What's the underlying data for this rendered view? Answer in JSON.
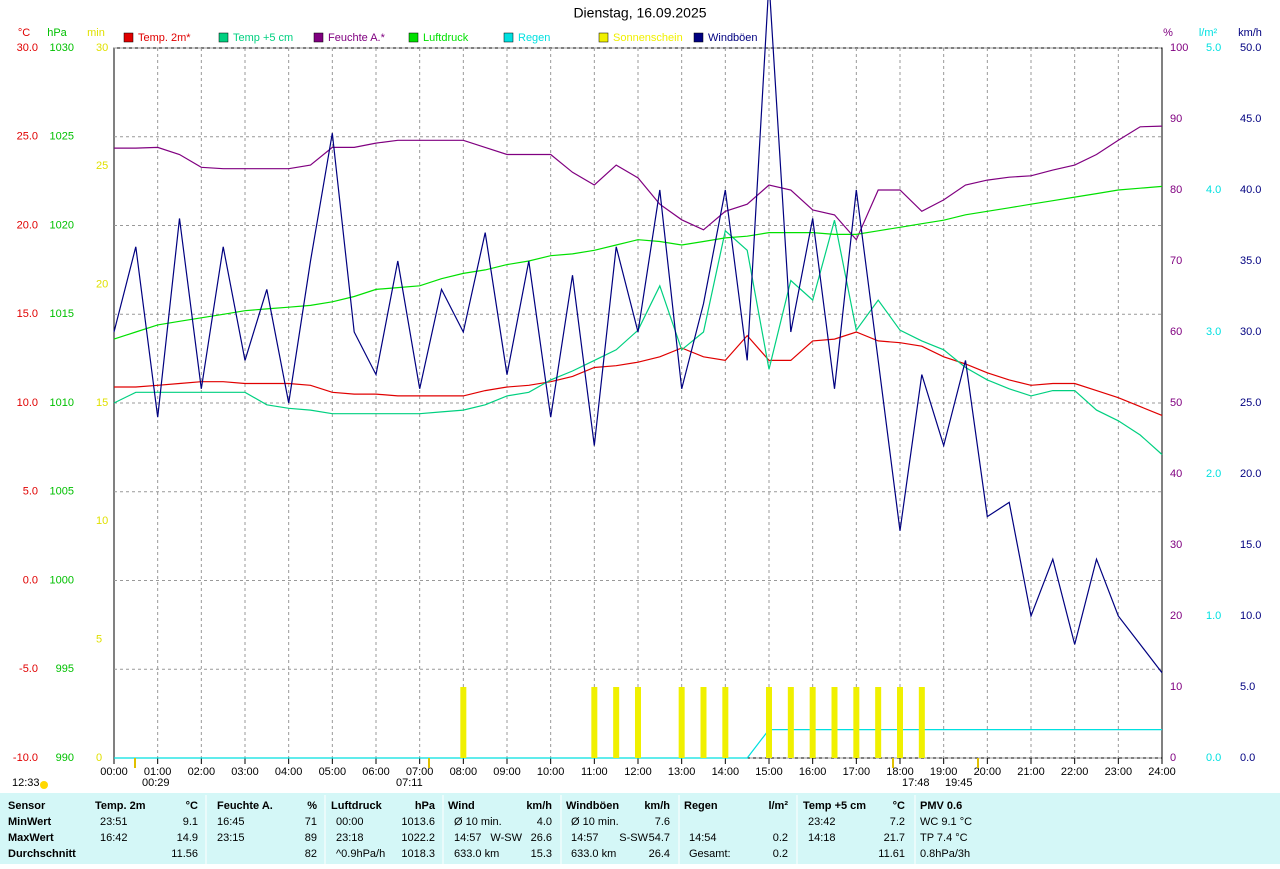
{
  "chart_data": {
    "type": "line",
    "title": "Dienstag, 16.09.2025",
    "grid": true,
    "x": [
      "00:00",
      null,
      "01:00",
      null,
      "02:00",
      null,
      "03:00",
      null,
      "04:00",
      null,
      "05:00",
      null,
      "06:00",
      null,
      "07:00",
      null,
      "08:00",
      null,
      "09:00",
      null,
      "10:00",
      null,
      "11:00",
      null,
      "12:00",
      null,
      "13:00",
      null,
      "14:00",
      null,
      "15:00",
      null,
      "16:00",
      null,
      "17:00",
      null,
      "18:00",
      null,
      "19:00",
      null,
      "20:00",
      null,
      "21:00",
      null,
      "22:00",
      null,
      "23:00",
      null,
      "24:00"
    ],
    "axes": [
      {
        "unit": "°C",
        "color": "#e00000",
        "lim": [
          -10,
          30
        ],
        "ticks": [
          {
            "value": 30,
            "label": "30.0"
          },
          {
            "value": 25,
            "label": "25.0"
          },
          {
            "value": 20,
            "label": "20.0"
          },
          {
            "value": 15,
            "label": "15.0"
          },
          {
            "value": 10,
            "label": "10.0"
          },
          {
            "value": 5,
            "label": "5.0"
          },
          {
            "value": 0,
            "label": "0.0"
          },
          {
            "value": -5,
            "label": "-5.0"
          },
          {
            "value": -10,
            "label": "-10.0"
          }
        ]
      },
      {
        "unit": "hPa",
        "color": "#00c000",
        "lim": [
          990,
          1030
        ],
        "ticks": [
          1030,
          1025,
          1020,
          1015,
          1010,
          1005,
          1000,
          995,
          990
        ]
      },
      {
        "unit": "min",
        "color": "#e0e000",
        "lim": [
          0,
          30
        ],
        "ticks": [
          30,
          25,
          20,
          15,
          10,
          5,
          0
        ]
      },
      {
        "unit": "%",
        "color": "#800080",
        "lim": [
          0,
          100
        ],
        "ticks": [
          100,
          90,
          80,
          70,
          60,
          50,
          40,
          30,
          20,
          10,
          0
        ]
      },
      {
        "unit": "l/m²",
        "color": "#00e0e0",
        "lim": [
          0,
          5
        ],
        "ticks": [
          {
            "value": 5,
            "label": "5.0"
          },
          {
            "value": 4,
            "label": "4.0"
          },
          {
            "value": 3,
            "label": "3.0"
          },
          {
            "value": 2,
            "label": "2.0"
          },
          {
            "value": 1,
            "label": "1.0"
          },
          {
            "value": 0,
            "label": "0.0"
          }
        ]
      },
      {
        "unit": "km/h",
        "color": "#000080",
        "lim": [
          0,
          50
        ],
        "ticks": [
          {
            "value": 50,
            "label": "50.0"
          },
          {
            "value": 45,
            "label": "45.0"
          },
          {
            "value": 40,
            "label": "40.0"
          },
          {
            "value": 35,
            "label": "35.0"
          },
          {
            "value": 30,
            "label": "30.0"
          },
          {
            "value": 25,
            "label": "25.0"
          },
          {
            "value": 20,
            "label": "20.0"
          },
          {
            "value": 15,
            "label": "15.0"
          },
          {
            "value": 10,
            "label": "10.0"
          },
          {
            "value": 5,
            "label": "5.0"
          },
          {
            "value": 0,
            "label": "0.0"
          }
        ]
      }
    ],
    "series": [
      {
        "name": "Temp. 2m*",
        "color": "#e00000",
        "axis": 0,
        "type": "line",
        "values": [
          10.9,
          10.9,
          11.0,
          11.1,
          11.2,
          11.2,
          11.1,
          11.1,
          11.1,
          11.0,
          10.6,
          10.5,
          10.5,
          10.4,
          10.4,
          10.4,
          10.4,
          10.7,
          10.9,
          11.0,
          11.2,
          11.5,
          12.0,
          12.1,
          12.3,
          12.6,
          13.1,
          12.6,
          12.4,
          13.8,
          12.4,
          12.4,
          13.5,
          13.6,
          14.0,
          13.5,
          13.4,
          13.2,
          12.6,
          12.2,
          11.7,
          11.3,
          11.0,
          11.1,
          11.1,
          10.7,
          10.3,
          9.8,
          9.3
        ]
      },
      {
        "name": "Temp +5 cm",
        "color": "#00d080",
        "axis": 0,
        "type": "line",
        "values": [
          10.0,
          10.6,
          10.6,
          10.6,
          10.6,
          10.6,
          10.6,
          9.9,
          9.7,
          9.6,
          9.4,
          9.4,
          9.4,
          9.4,
          9.4,
          9.5,
          9.6,
          9.9,
          10.4,
          10.6,
          11.3,
          11.8,
          12.4,
          13.0,
          14.1,
          16.6,
          13.0,
          14.0,
          19.7,
          18.6,
          11.9,
          16.9,
          15.8,
          20.3,
          14.1,
          15.8,
          14.1,
          13.5,
          13.0,
          12.0,
          11.3,
          10.8,
          10.4,
          10.7,
          10.7,
          9.6,
          9.0,
          8.2,
          7.1
        ]
      },
      {
        "name": "Feuchte A.*",
        "color": "#800080",
        "axis": 3,
        "type": "line",
        "values": [
          85.9,
          85.9,
          86,
          85,
          83.2,
          83,
          83,
          83,
          83,
          83.5,
          86,
          86,
          86.6,
          87,
          87,
          87,
          87,
          86,
          85,
          85,
          85,
          82.5,
          80.7,
          83.5,
          81.7,
          78,
          75.8,
          74.4,
          77,
          78,
          80.7,
          80,
          77.2,
          76.5,
          73,
          80,
          80,
          77,
          78.6,
          80.7,
          81.4,
          81.8,
          82,
          82.8,
          83.5,
          85,
          87,
          88.9,
          89
        ]
      },
      {
        "name": "Luftdruck",
        "color": "#00e000",
        "axis": 1,
        "type": "line",
        "values": [
          1013.6,
          1014,
          1014.4,
          1014.6,
          1014.8,
          1015,
          1015.2,
          1015.3,
          1015.4,
          1015.5,
          1015.7,
          1016,
          1016.4,
          1016.5,
          1016.6,
          1017,
          1017.3,
          1017.5,
          1017.8,
          1018,
          1018.3,
          1018.4,
          1018.6,
          1018.9,
          1019.2,
          1019.1,
          1018.9,
          1019.1,
          1019.3,
          1019.4,
          1019.6,
          1019.6,
          1019.6,
          1019.5,
          1019.5,
          1019.7,
          1019.9,
          1020.1,
          1020.3,
          1020.6,
          1020.8,
          1021,
          1021.2,
          1021.4,
          1021.6,
          1021.8,
          1022,
          1022.1,
          1022.2
        ]
      },
      {
        "name": "Regen",
        "color": "#00e0e0",
        "axis": 4,
        "type": "line",
        "values": [
          0,
          0,
          0,
          0,
          0,
          0,
          0,
          0,
          0,
          0,
          0,
          0,
          0,
          0,
          0,
          0,
          0,
          0,
          0,
          0,
          0,
          0,
          0,
          0,
          0,
          0,
          0,
          0,
          0,
          0,
          0.2,
          0.2,
          0.2,
          0.2,
          0.2,
          0.2,
          0.2,
          0.2,
          0.2,
          0.2,
          0.2,
          0.2,
          0.2,
          0.2,
          0.2,
          0.2,
          0.2,
          0.2,
          0.2
        ]
      },
      {
        "name": "Sonnenschein",
        "color": "#f0f000",
        "axis": 2,
        "type": "bar",
        "values": [
          0,
          0,
          0,
          0,
          0,
          0,
          0,
          0,
          0,
          0,
          0,
          0,
          0,
          0,
          0,
          0,
          3,
          0,
          0,
          0,
          0,
          0,
          3,
          3,
          3,
          0,
          3,
          3,
          3,
          0,
          3,
          3,
          3,
          3,
          3,
          3,
          3,
          3,
          0,
          0,
          0,
          0,
          0,
          0,
          0,
          0,
          0,
          0,
          0
        ]
      },
      {
        "name": "Windböen",
        "color": "#000080",
        "axis": 5,
        "type": "line",
        "values": [
          30,
          36,
          24,
          38,
          26,
          36,
          28,
          33,
          25,
          35,
          44,
          30,
          27,
          35,
          26,
          33,
          30,
          37,
          27,
          35,
          24,
          34,
          22,
          36,
          30,
          40,
          26,
          32,
          40,
          28,
          54.7,
          30,
          38,
          26,
          40,
          28,
          16,
          27,
          22,
          28,
          17,
          18,
          10,
          14,
          8,
          14,
          10,
          8,
          6
        ]
      }
    ],
    "markers": [
      "12:33",
      "00:29",
      "07:11",
      "17:48",
      "19:45"
    ],
    "table": {
      "header": [
        "Sensor",
        "Temp. 2m",
        "°C",
        "Feuchte A.",
        "%",
        "Luftdruck",
        "hPa",
        "Wind",
        "km/h",
        "Windböen",
        "km/h",
        "Regen",
        "l/m²",
        "Temp +5 cm",
        "°C",
        "PMV 0.6"
      ],
      "rows": [
        [
          "MinWert",
          "23:51",
          "9.1",
          "16:45",
          "71",
          "00:00",
          "1013.6",
          "Ø 10 min.",
          null,
          "4.0",
          "Ø 10 min.",
          null,
          "7.6",
          null,
          null,
          "23:42",
          "7.2",
          "WC 9.1 °C"
        ],
        [
          "MaxWert",
          "16:42",
          "14.9",
          "23:15",
          "89",
          "23:18",
          "1022.2",
          "14:57",
          "W-SW",
          "26.6",
          "14:57",
          "S-SW",
          "54.7",
          "14:54",
          "0.2",
          "14:18",
          "21.7",
          "TP 7.4 °C"
        ],
        [
          "Durchschnitt",
          null,
          "11.56",
          null,
          "82",
          "^0.9hPa/h",
          "1018.3",
          "633.0 km",
          null,
          "15.3",
          "633.0 km",
          null,
          "26.4",
          "Gesamt:",
          "0.2",
          null,
          "11.61",
          "0.8hPa/3h"
        ]
      ]
    }
  }
}
